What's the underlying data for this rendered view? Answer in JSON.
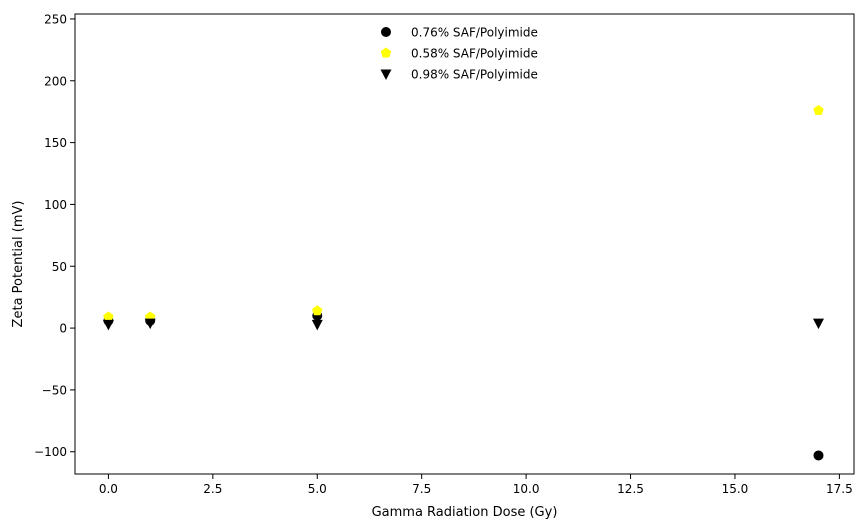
{
  "chart_data": {
    "type": "scatter",
    "title": "",
    "xlabel": "Gamma Radiation Dose (Gy)",
    "ylabel": "Zeta Potential (mV)",
    "xlim": [
      -0.8,
      17.85
    ],
    "ylim": [
      -118,
      254
    ],
    "xticks": [
      0.0,
      2.5,
      5.0,
      7.5,
      10.0,
      12.5,
      15.0,
      17.5
    ],
    "xtick_labels": [
      "0.0",
      "2.5",
      "5.0",
      "7.5",
      "10.0",
      "12.5",
      "15.0",
      "17.5"
    ],
    "yticks": [
      -100,
      -50,
      0,
      50,
      100,
      150,
      200,
      250
    ],
    "ytick_labels": [
      "−100",
      "−50",
      "0",
      "50",
      "100",
      "150",
      "200",
      "250"
    ],
    "grid": false,
    "legend_position": "top-center",
    "series": [
      {
        "name": "0.76% SAF/Polyimide",
        "color": "#000000",
        "marker": "circle",
        "x": [
          0,
          1,
          5,
          17
        ],
        "y": [
          6,
          6,
          10,
          -103
        ]
      },
      {
        "name": "0.58% SAF/Polyimide",
        "color": "#ffff00",
        "marker": "pentagon",
        "x": [
          0,
          1,
          5,
          17
        ],
        "y": [
          9,
          9,
          14,
          176
        ]
      },
      {
        "name": "0.98% SAF/Polyimide",
        "color": "#000000",
        "marker": "triangle-down",
        "x": [
          0,
          1,
          5,
          17
        ],
        "y": [
          3,
          4,
          3,
          4
        ]
      }
    ]
  }
}
